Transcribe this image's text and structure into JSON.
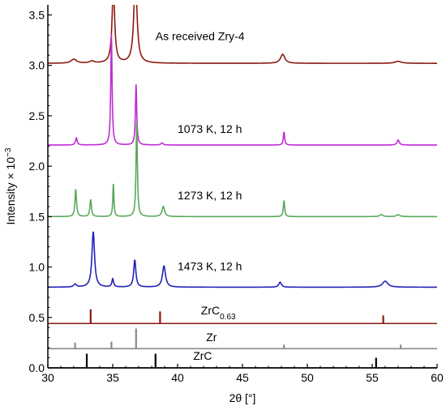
{
  "chart_data": {
    "type": "line",
    "xlabel": "2θ [°]",
    "ylabel_main": "Intensity × 10",
    "ylabel_sup": "−3",
    "xlim": [
      30,
      60
    ],
    "ylim": [
      0,
      3.6
    ],
    "xticks": [
      30,
      35,
      40,
      45,
      50,
      55,
      60
    ],
    "yticks": [
      0.0,
      0.5,
      1.0,
      1.5,
      2.0,
      2.5,
      3.0,
      3.5
    ],
    "grid": false,
    "series": [
      {
        "name": "As received Zry-4",
        "color": "#8b1a10",
        "baseline": 3.02,
        "peaks": [
          [
            32.0,
            0.04,
            0.25
          ],
          [
            33.4,
            0.02,
            0.2
          ],
          [
            35.05,
            0.75,
            0.12
          ],
          [
            36.75,
            0.9,
            0.14
          ],
          [
            48.1,
            0.09,
            0.2
          ],
          [
            57.0,
            0.02,
            0.3
          ]
        ]
      },
      {
        "name": "1073 K, 12 h",
        "color": "#c02bd6",
        "baseline": 2.21,
        "peaks": [
          [
            32.2,
            0.07,
            0.08
          ],
          [
            34.9,
            1.1,
            0.06
          ],
          [
            36.8,
            0.6,
            0.06
          ],
          [
            38.8,
            0.02,
            0.1
          ],
          [
            48.2,
            0.13,
            0.06
          ],
          [
            57.0,
            0.05,
            0.1
          ]
        ]
      },
      {
        "name": "1273 K, 12 h",
        "color": "#5aa85a",
        "baseline": 1.5,
        "peaks": [
          [
            32.15,
            0.27,
            0.07
          ],
          [
            33.3,
            0.17,
            0.07
          ],
          [
            35.05,
            0.33,
            0.05
          ],
          [
            36.85,
            0.95,
            0.06
          ],
          [
            38.9,
            0.1,
            0.12
          ],
          [
            48.2,
            0.16,
            0.06
          ],
          [
            55.7,
            0.02,
            0.15
          ],
          [
            57.0,
            0.02,
            0.15
          ]
        ]
      },
      {
        "name": "1473 K, 12 h",
        "color": "#1f22b8",
        "baseline": 0.8,
        "peaks": [
          [
            32.1,
            0.03,
            0.12
          ],
          [
            33.5,
            0.55,
            0.12
          ],
          [
            35.0,
            0.08,
            0.08
          ],
          [
            36.7,
            0.27,
            0.1
          ],
          [
            38.95,
            0.21,
            0.14
          ],
          [
            47.9,
            0.05,
            0.12
          ],
          [
            56.0,
            0.06,
            0.25
          ]
        ]
      }
    ],
    "reference_patterns": [
      {
        "name": "ZrC",
        "label_sub": "0.63",
        "color": "#8b1a10",
        "baseline": 0.44,
        "lines": [
          [
            33.3,
            0.14
          ],
          [
            38.65,
            0.12
          ],
          [
            55.85,
            0.08
          ]
        ]
      },
      {
        "name": "Zr",
        "label_sub": "",
        "color": "#8a8a8a",
        "baseline": 0.19,
        "lines": [
          [
            32.1,
            0.06
          ],
          [
            34.9,
            0.07
          ],
          [
            36.8,
            0.2
          ],
          [
            48.2,
            0.04
          ],
          [
            57.2,
            0.04
          ]
        ]
      },
      {
        "name": "ZrC",
        "label_sub": "",
        "color": "#000000",
        "baseline": 0.0,
        "lines": [
          [
            33.0,
            0.14
          ],
          [
            38.3,
            0.14
          ],
          [
            55.3,
            0.1
          ]
        ]
      }
    ],
    "annotations": [
      {
        "text": "As received Zry-4",
        "sub": "",
        "x": 38.3,
        "y": 3.25
      },
      {
        "text": "1073 K, 12 h",
        "sub": "",
        "x": 40.0,
        "y": 2.33
      },
      {
        "text": "1273 K, 12 h",
        "sub": "",
        "x": 40.0,
        "y": 1.67
      },
      {
        "text": "1473 K, 12 h",
        "sub": "",
        "x": 40.0,
        "y": 0.97
      },
      {
        "text": "ZrC",
        "sub": "0.63",
        "x": 41.8,
        "y": 0.53
      },
      {
        "text": "Zr",
        "sub": "",
        "x": 42.2,
        "y": 0.265
      },
      {
        "text": "ZrC",
        "sub": "",
        "x": 41.2,
        "y": 0.08
      }
    ]
  }
}
